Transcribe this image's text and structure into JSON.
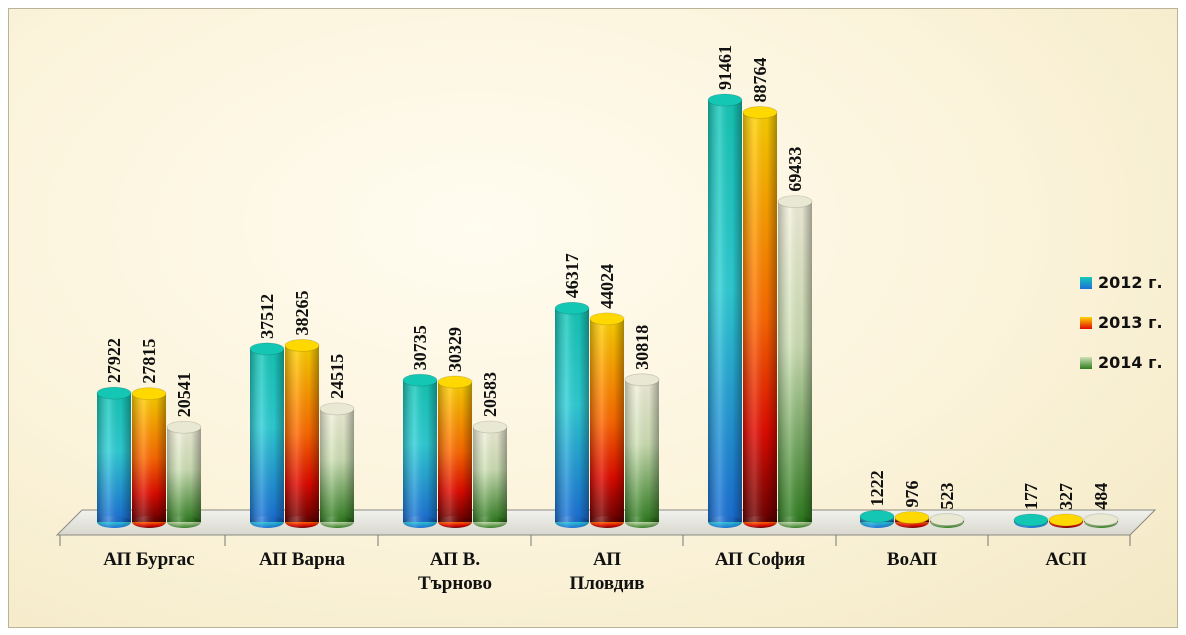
{
  "chart_data": {
    "type": "bar",
    "title": "",
    "xlabel": "",
    "ylabel": "",
    "ylim": [
      0,
      100000
    ],
    "grid": false,
    "legend_position": "right",
    "categories": [
      "АП Бургас",
      "АП Варна",
      "АП В. Търново",
      "АП Пловдив",
      "АП София",
      "ВоАП",
      "АСП"
    ],
    "category_lines": [
      [
        "АП Бургас"
      ],
      [
        "АП Варна"
      ],
      [
        "АП В.",
        "Търново"
      ],
      [
        "АП",
        "Пловдив"
      ],
      [
        "АП София"
      ],
      [
        "ВоАП"
      ],
      [
        "АСП"
      ]
    ],
    "series": [
      {
        "name": "2012 г.",
        "values": [
          27922,
          37512,
          30735,
          46317,
          91461,
          1222,
          177
        ],
        "color": "#1fa9e0"
      },
      {
        "name": "2013 г.",
        "values": [
          27815,
          38265,
          30329,
          44024,
          88764,
          976,
          327
        ],
        "color": "#f3b400"
      },
      {
        "name": "2014 г.",
        "values": [
          20541,
          24515,
          20583,
          30818,
          69433,
          523,
          484
        ],
        "color": "#8fb36a"
      }
    ]
  }
}
